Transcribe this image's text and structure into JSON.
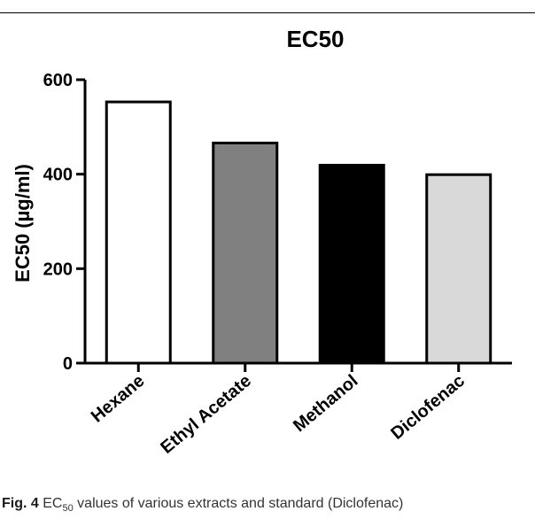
{
  "chart_data": {
    "type": "bar",
    "title": "EC50",
    "ylabel": "EC50 (µg/ml)",
    "xlabel": "",
    "categories": [
      "Hexane",
      "Ethyl Acetate",
      "Methanol",
      "Diclofenac"
    ],
    "values": [
      553,
      466,
      419,
      399
    ],
    "fills": [
      "#ffffff",
      "#808080",
      "#000000",
      "#d9d9d9"
    ],
    "ylim": [
      0,
      600
    ],
    "yticks": [
      0,
      200,
      400,
      600
    ],
    "grid": false,
    "legend": "none"
  },
  "caption": {
    "label": "Fig. 4",
    "text_pre": "EC",
    "text_sub": "50",
    "text_post": "values of various extracts and standard (Diclofenac)"
  }
}
